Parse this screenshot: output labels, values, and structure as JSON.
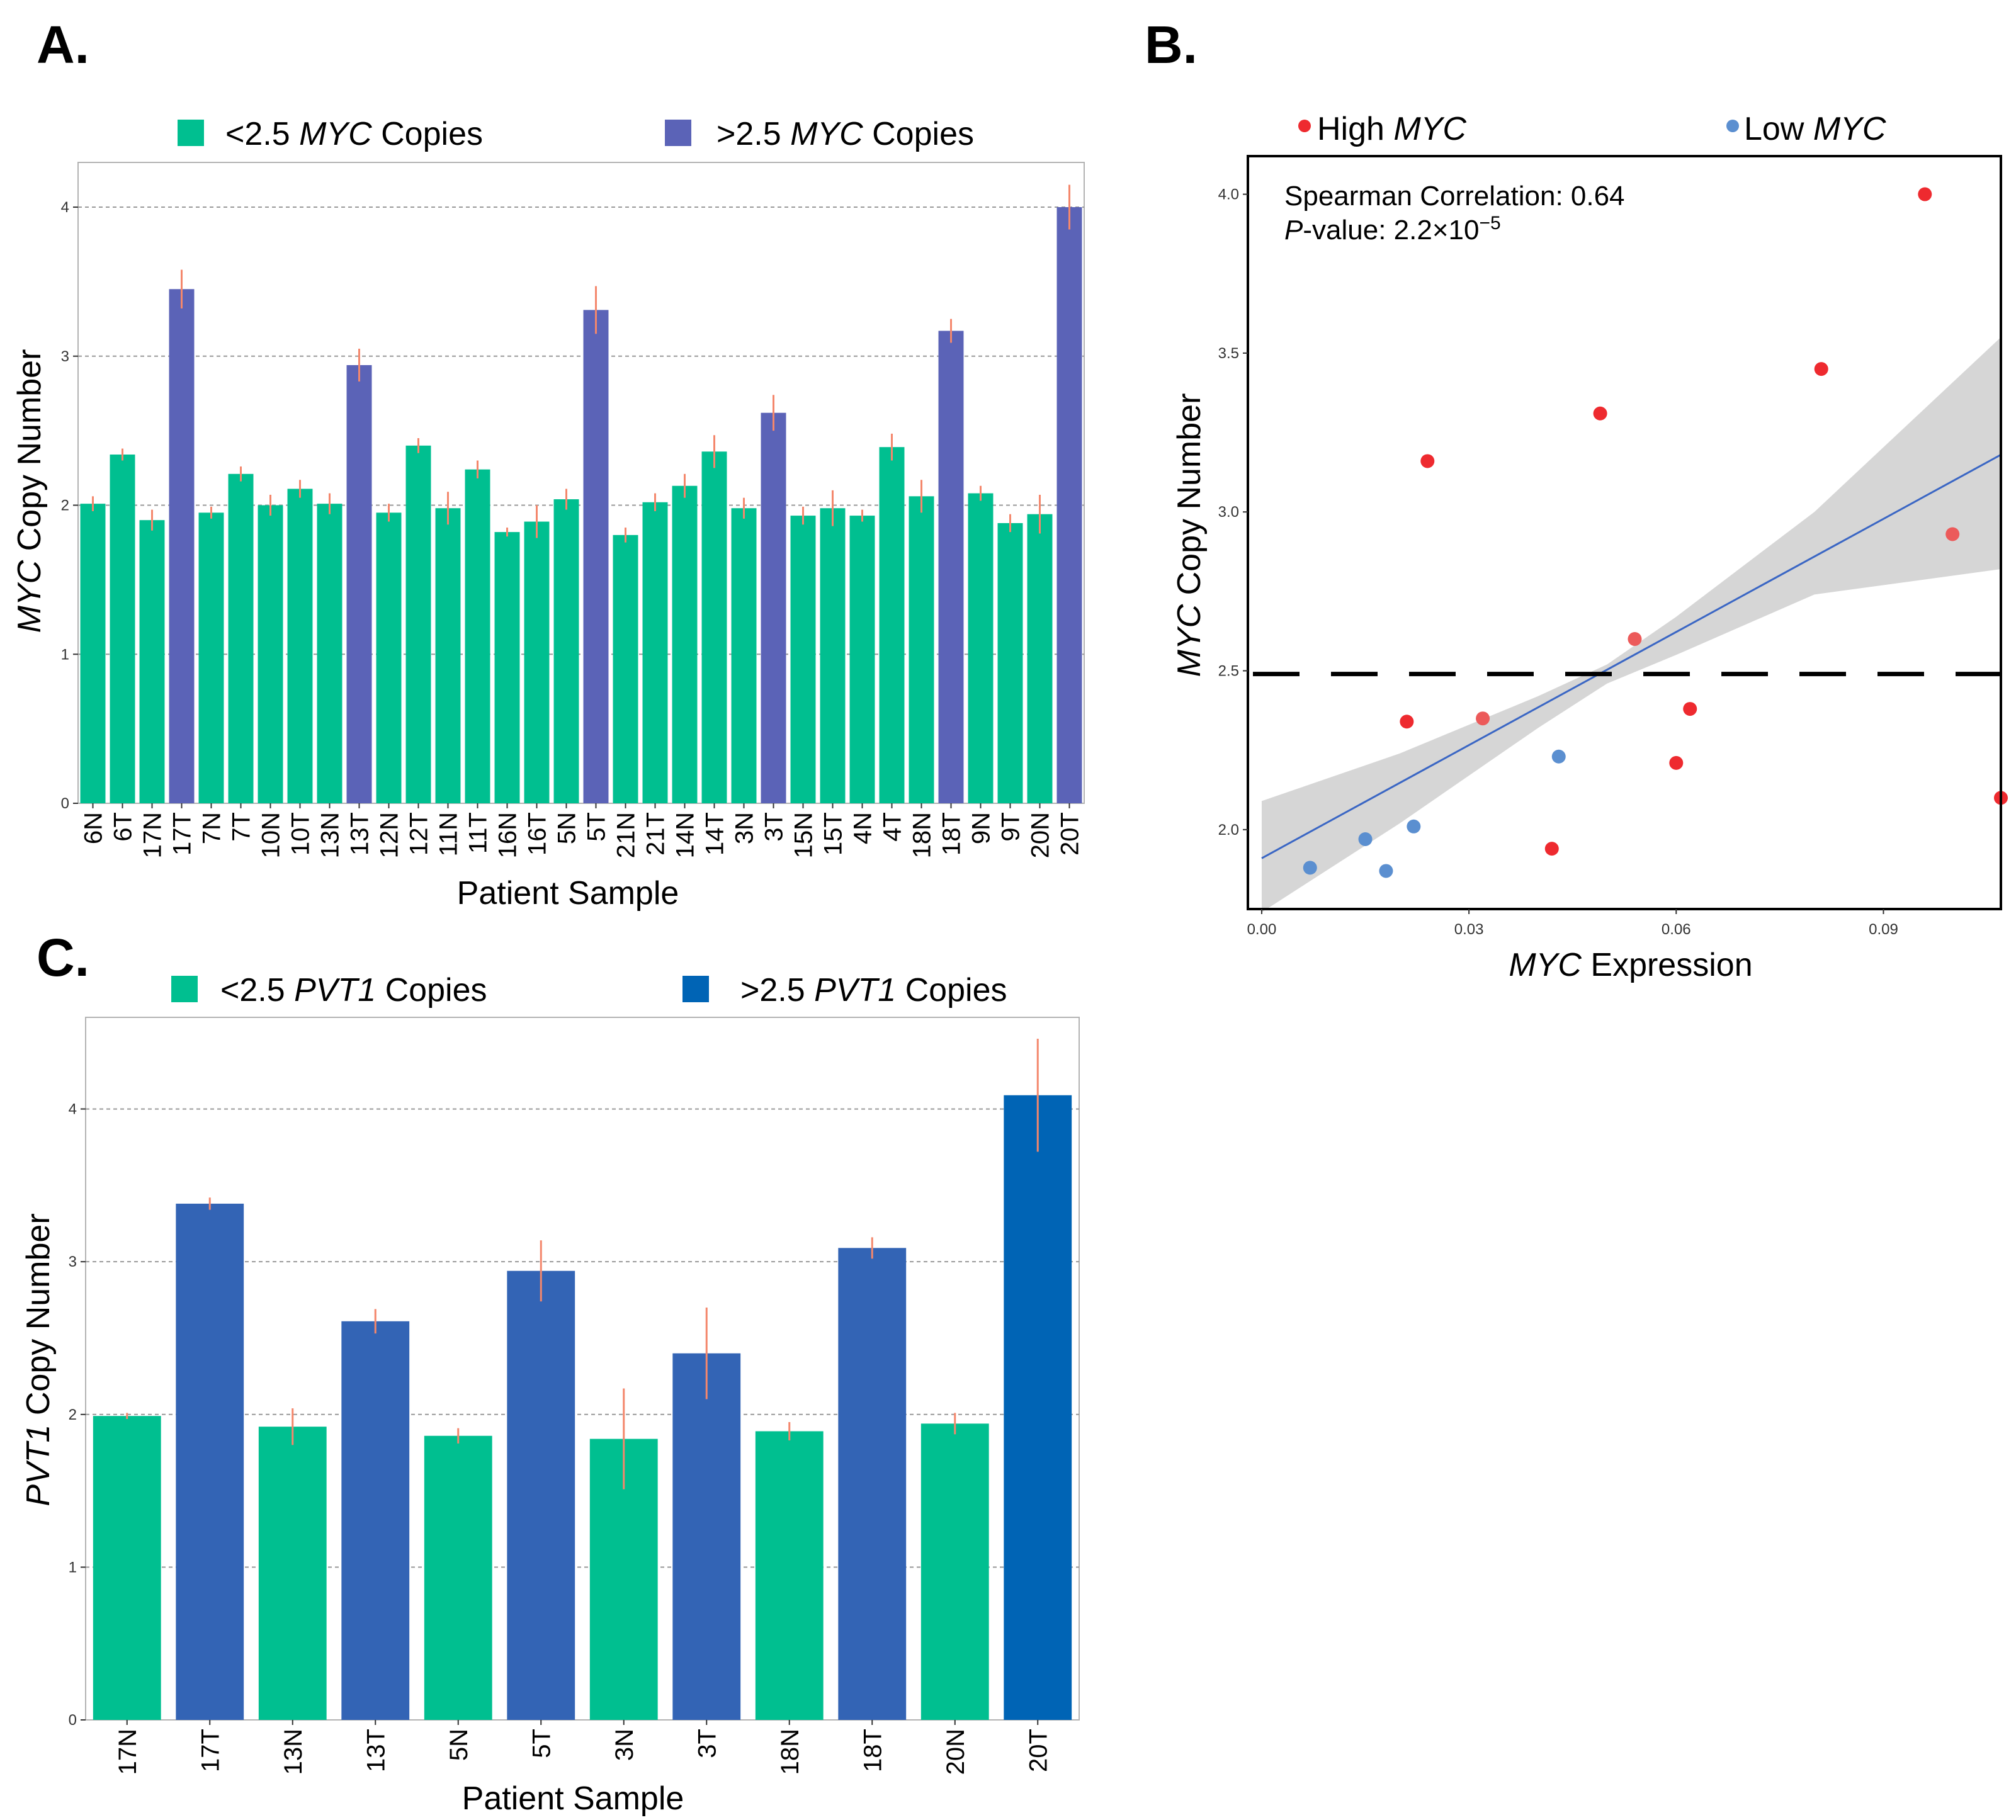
{
  "colors": {
    "low": "#00bf90",
    "high_a": "#5b63b7",
    "high_c": "#3364b5",
    "high_c_max": "#0064b5",
    "error": "#f4876c",
    "grid": "#999999",
    "high_point": "#ee2a2f",
    "high_point_mid": "#ec5a5a",
    "low_point": "#5b8fd0",
    "fit_line": "#3a66c4",
    "ci_band": "#d6d6d6",
    "threshold": "#000000"
  },
  "chart_data": [
    {
      "panel": "A.",
      "type": "bar",
      "legend": [
        {
          "prefix": "<2.5 ",
          "gene": "MYC",
          "suffix": " Copies",
          "group": "low"
        },
        {
          "prefix": ">2.5 ",
          "gene": "MYC",
          "suffix": " Copies",
          "group": "high"
        }
      ],
      "xlabel": "Patient Sample",
      "ylabel_gene": "MYC",
      "ylabel_rest": " Copy Number",
      "ylim": [
        0,
        4.3
      ],
      "yticks": [
        0,
        1,
        2,
        3,
        4
      ],
      "ytick_labels": [
        "0",
        "1",
        "2",
        "3",
        "4"
      ],
      "categories": [
        "6N",
        "6T",
        "17N",
        "17T",
        "7N",
        "7T",
        "10N",
        "10T",
        "13N",
        "13T",
        "12N",
        "12T",
        "11N",
        "11T",
        "16N",
        "16T",
        "5N",
        "5T",
        "21N",
        "21T",
        "14N",
        "14T",
        "3N",
        "3T",
        "15N",
        "15T",
        "4N",
        "4T",
        "18N",
        "18T",
        "9N",
        "9T",
        "20N",
        "20T"
      ],
      "values": [
        2.01,
        2.34,
        1.9,
        3.45,
        1.95,
        2.21,
        2.0,
        2.11,
        2.01,
        2.94,
        1.95,
        2.4,
        1.98,
        2.24,
        1.82,
        1.89,
        2.04,
        3.31,
        1.8,
        2.02,
        2.13,
        2.36,
        1.98,
        2.62,
        1.93,
        1.98,
        1.93,
        2.39,
        2.06,
        3.17,
        2.08,
        1.88,
        1.94,
        4.0
      ],
      "errors": [
        0.05,
        0.04,
        0.07,
        0.13,
        0.04,
        0.05,
        0.07,
        0.06,
        0.07,
        0.11,
        0.06,
        0.05,
        0.11,
        0.06,
        0.03,
        0.11,
        0.07,
        0.16,
        0.05,
        0.06,
        0.08,
        0.11,
        0.07,
        0.12,
        0.06,
        0.12,
        0.04,
        0.09,
        0.11,
        0.08,
        0.05,
        0.06,
        0.13,
        0.15
      ],
      "groups": [
        "low",
        "low",
        "low",
        "high",
        "low",
        "low",
        "low",
        "low",
        "low",
        "high",
        "low",
        "low",
        "low",
        "low",
        "low",
        "low",
        "low",
        "high",
        "low",
        "low",
        "low",
        "low",
        "low",
        "high",
        "low",
        "low",
        "low",
        "low",
        "low",
        "high",
        "low",
        "low",
        "low",
        "high"
      ]
    },
    {
      "panel": "B.",
      "type": "scatter",
      "legend": [
        {
          "label": "High ",
          "gene": "MYC",
          "group": "high"
        },
        {
          "label": "Low ",
          "gene": "MYC",
          "group": "low"
        }
      ],
      "annotation_line1": "Spearman Correlation: 0.64",
      "annotation_p": "P",
      "annotation_rest": "-value: 2.2×10",
      "annotation_exp": "−5",
      "xlabel_gene": "MYC",
      "xlabel_rest": " Expression",
      "ylabel_gene": "MYC",
      "ylabel_rest": " Copy Number",
      "xlim": [
        -0.002,
        0.107
      ],
      "ylim": [
        1.75,
        4.12
      ],
      "xticks": [
        0,
        0.03,
        0.06,
        0.09
      ],
      "xtick_labels": [
        "0.00",
        "0.03",
        "0.06",
        "0.09"
      ],
      "yticks": [
        2.0,
        2.5,
        3.0,
        3.5,
        4.0
      ],
      "ytick_labels": [
        "2.0",
        "2.5",
        "3.0",
        "3.5",
        "4.0"
      ],
      "threshold": 2.49,
      "fit": {
        "x0": 0.0,
        "y0": 1.91,
        "x1": 0.107,
        "y1": 3.18
      },
      "ci_upper": [
        [
          0.0,
          2.09
        ],
        [
          0.02,
          2.24
        ],
        [
          0.04,
          2.42
        ],
        [
          0.05,
          2.52
        ],
        [
          0.06,
          2.67
        ],
        [
          0.08,
          3.0
        ],
        [
          0.107,
          3.55
        ]
      ],
      "ci_lower": [
        [
          0.0,
          1.74
        ],
        [
          0.02,
          2.02
        ],
        [
          0.04,
          2.32
        ],
        [
          0.05,
          2.46
        ],
        [
          0.06,
          2.55
        ],
        [
          0.08,
          2.74
        ],
        [
          0.107,
          2.82
        ]
      ],
      "points": [
        {
          "x": 0.007,
          "y": 1.88,
          "group": "low"
        },
        {
          "x": 0.015,
          "y": 1.97,
          "group": "low"
        },
        {
          "x": 0.018,
          "y": 1.87,
          "group": "low"
        },
        {
          "x": 0.022,
          "y": 2.01,
          "group": "low"
        },
        {
          "x": 0.043,
          "y": 2.23,
          "group": "low"
        },
        {
          "x": 0.021,
          "y": 2.34,
          "group": "high"
        },
        {
          "x": 0.024,
          "y": 3.16,
          "group": "high"
        },
        {
          "x": 0.032,
          "y": 2.35,
          "group": "high_mid"
        },
        {
          "x": 0.042,
          "y": 1.94,
          "group": "high"
        },
        {
          "x": 0.049,
          "y": 3.31,
          "group": "high"
        },
        {
          "x": 0.054,
          "y": 2.6,
          "group": "high_mid"
        },
        {
          "x": 0.06,
          "y": 2.21,
          "group": "high"
        },
        {
          "x": 0.062,
          "y": 2.38,
          "group": "high"
        },
        {
          "x": 0.081,
          "y": 3.45,
          "group": "high"
        },
        {
          "x": 0.096,
          "y": 4.0,
          "group": "high"
        },
        {
          "x": 0.1,
          "y": 2.93,
          "group": "high_mid"
        },
        {
          "x": 0.107,
          "y": 2.1,
          "group": "high"
        }
      ]
    },
    {
      "panel": "C.",
      "type": "bar",
      "legend": [
        {
          "prefix": "<2.5 ",
          "gene": "PVT1",
          "suffix": " Copies",
          "group": "low"
        },
        {
          "prefix": ">2.5 ",
          "gene": "PVT1",
          "suffix": " Copies",
          "group": "high_max"
        }
      ],
      "xlabel": "Patient Sample",
      "ylabel_gene": "PVT1",
      "ylabel_rest": " Copy Number",
      "ylim": [
        0,
        4.6
      ],
      "yticks": [
        0,
        1,
        2,
        3,
        4
      ],
      "ytick_labels": [
        "0",
        "1",
        "2",
        "3",
        "4"
      ],
      "categories": [
        "17N",
        "17T",
        "13N",
        "13T",
        "5N",
        "5T",
        "3N",
        "3T",
        "18N",
        "18T",
        "20N",
        "20T"
      ],
      "values": [
        1.99,
        3.38,
        1.92,
        2.61,
        1.86,
        2.94,
        1.84,
        2.4,
        1.89,
        3.09,
        1.94,
        4.09
      ],
      "errors": [
        0.02,
        0.04,
        0.12,
        0.08,
        0.05,
        0.2,
        0.33,
        0.3,
        0.06,
        0.07,
        0.07,
        0.37
      ],
      "groups": [
        "low",
        "high",
        "low",
        "high",
        "low",
        "high",
        "low",
        "high",
        "low",
        "high",
        "low",
        "high_max"
      ]
    }
  ]
}
